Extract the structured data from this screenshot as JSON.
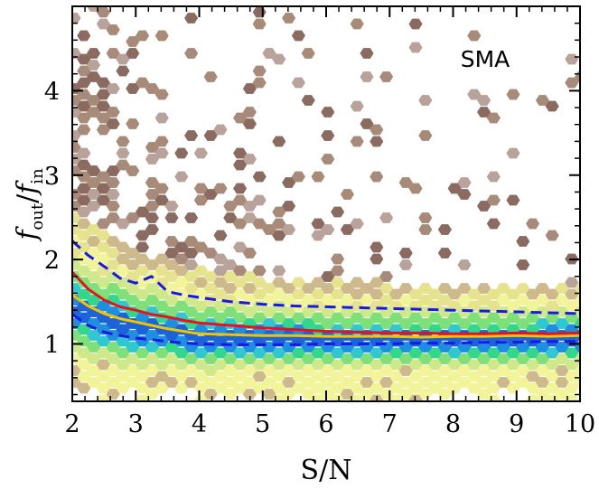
{
  "chart_data": {
    "type": "scatter",
    "subtype": "hexbin-density",
    "title": "",
    "annotation": "SMA",
    "xlabel": "S/N",
    "ylabel": "f_out/f_in",
    "ylabel_parts": {
      "main": "f",
      "sub1": "out",
      "slash": "/",
      "main2": "f",
      "sub2": "in"
    },
    "xlim": [
      2,
      10
    ],
    "ylim": [
      0.32,
      5.0
    ],
    "xticks": [
      2,
      3,
      4,
      5,
      6,
      7,
      8,
      9,
      10
    ],
    "yticks": [
      1,
      2,
      3,
      4
    ],
    "grid": false,
    "colormap": [
      "#1b63d6",
      "#1e8fe0",
      "#2fc7d0",
      "#32d78c",
      "#7fe07a",
      "#cfe98a",
      "#f2f49a",
      "#e6e38f",
      "#cdb98c",
      "#a88a79",
      "#8b6a60",
      "#b8a29a"
    ],
    "density_center": {
      "x": [
        2,
        2.5,
        3,
        3.5,
        4,
        5,
        6,
        7,
        8,
        9,
        10
      ],
      "y": [
        1.45,
        1.3,
        1.22,
        1.16,
        1.1,
        1.08,
        1.06,
        1.06,
        1.07,
        1.07,
        1.08
      ]
    },
    "series": [
      {
        "name": "",
        "role": "median",
        "color": "#f2c400",
        "style": "solid",
        "x": [
          2,
          2.25,
          2.5,
          2.75,
          3,
          3.25,
          3.5,
          3.75,
          4,
          4.5,
          5,
          5.5,
          6,
          6.5,
          7,
          7.5,
          8,
          8.5,
          9,
          9.5,
          10
        ],
        "y": [
          1.58,
          1.45,
          1.36,
          1.3,
          1.26,
          1.22,
          1.18,
          1.15,
          1.12,
          1.11,
          1.1,
          1.1,
          1.09,
          1.09,
          1.09,
          1.08,
          1.09,
          1.09,
          1.1,
          1.09,
          1.1
        ]
      },
      {
        "name": "",
        "role": "mean",
        "color": "#e8121e",
        "style": "solid",
        "x": [
          2,
          2.25,
          2.5,
          2.75,
          3,
          3.25,
          3.5,
          3.75,
          4,
          4.5,
          5,
          5.5,
          6,
          6.5,
          7,
          7.5,
          8,
          8.5,
          9,
          9.5,
          10
        ],
        "y": [
          1.85,
          1.65,
          1.52,
          1.44,
          1.4,
          1.35,
          1.32,
          1.28,
          1.25,
          1.22,
          1.19,
          1.17,
          1.15,
          1.14,
          1.13,
          1.13,
          1.12,
          1.12,
          1.13,
          1.12,
          1.13
        ]
      },
      {
        "name": "",
        "role": "upper-percentile",
        "color": "#1919e6",
        "style": "dashed",
        "x": [
          2,
          2.25,
          2.5,
          2.75,
          3,
          3.25,
          3.5,
          3.75,
          4,
          4.5,
          5,
          5.5,
          6,
          6.5,
          7,
          7.5,
          8,
          8.5,
          9,
          9.5,
          10
        ],
        "y": [
          2.22,
          2.05,
          1.92,
          1.78,
          1.72,
          1.8,
          1.62,
          1.58,
          1.55,
          1.5,
          1.47,
          1.45,
          1.44,
          1.43,
          1.42,
          1.41,
          1.4,
          1.39,
          1.38,
          1.37,
          1.36
        ]
      },
      {
        "name": "",
        "role": "lower-percentile",
        "color": "#1919e6",
        "style": "dashed",
        "x": [
          2,
          2.25,
          2.5,
          2.75,
          3,
          3.25,
          3.5,
          3.75,
          4,
          4.5,
          5,
          5.5,
          6,
          6.5,
          7,
          7.5,
          8,
          8.5,
          9,
          9.5,
          10
        ],
        "y": [
          1.35,
          1.22,
          1.14,
          1.1,
          1.07,
          1.05,
          1.03,
          1.01,
          1.0,
          0.99,
          0.99,
          0.99,
          1.0,
          1.0,
          1.0,
          1.01,
          1.01,
          1.02,
          1.02,
          1.03,
          1.03
        ]
      }
    ]
  }
}
